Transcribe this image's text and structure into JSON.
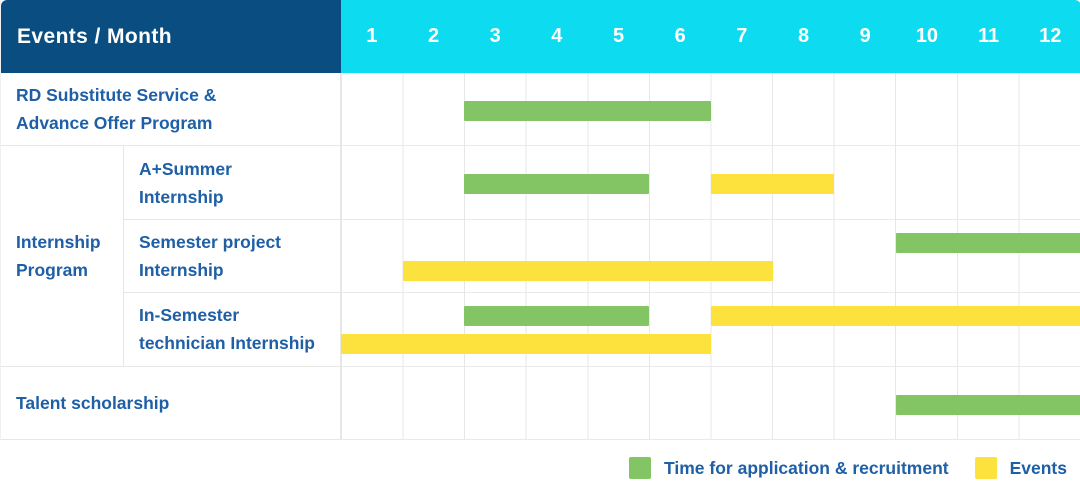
{
  "header": {
    "title": "Events / Month",
    "months": [
      "1",
      "2",
      "3",
      "4",
      "5",
      "6",
      "7",
      "8",
      "9",
      "10",
      "11",
      "12"
    ]
  },
  "group_label": {
    "lines": [
      "Internship",
      "Program"
    ]
  },
  "rows": [
    {
      "lines": [
        "RD Substitute Service &",
        "Advance Offer Program"
      ],
      "bars": [
        {
          "type": "recruitment",
          "from": 3,
          "to": 6,
          "line": "single"
        }
      ]
    },
    {
      "lines": [
        "A+Summer",
        "Internship"
      ],
      "bars": [
        {
          "type": "recruitment",
          "from": 3,
          "to": 5,
          "line": "single"
        },
        {
          "type": "event",
          "from": 7,
          "to": 8,
          "line": "single"
        }
      ]
    },
    {
      "lines": [
        "Semester project",
        "Internship"
      ],
      "bars": [
        {
          "type": "recruitment",
          "from": 10,
          "to": 12,
          "line": "top"
        },
        {
          "type": "event",
          "from": 2,
          "to": 7,
          "line": "bottom"
        }
      ]
    },
    {
      "lines": [
        "In-Semester",
        "technician Internship"
      ],
      "bars": [
        {
          "type": "recruitment",
          "from": 3,
          "to": 5,
          "line": "top"
        },
        {
          "type": "event",
          "from": 7,
          "to": 12,
          "line": "top"
        },
        {
          "type": "event",
          "from": 1,
          "to": 6,
          "line": "bottom"
        }
      ]
    },
    {
      "lines": [
        "Talent scholarship"
      ],
      "bars": [
        {
          "type": "recruitment",
          "from": 10,
          "to": 12,
          "line": "single"
        }
      ]
    }
  ],
  "legend": [
    {
      "type": "recruitment",
      "label": "Time for application & recruitment"
    },
    {
      "type": "event",
      "label": "Events"
    }
  ],
  "colors": {
    "dark_blue_header": "#0a4d80",
    "cyan_header": "#0cdbf0",
    "green_recruitment": "#83c564",
    "yellow_event": "#fde23e",
    "label_blue": "#1e5fa6",
    "grid_line": "#e7e7e7"
  },
  "chart_data": {
    "type": "table",
    "subtype": "gantt",
    "title": "Events / Month",
    "x_axis": {
      "label": "Month",
      "ticks": [
        1,
        2,
        3,
        4,
        5,
        6,
        7,
        8,
        9,
        10,
        11,
        12
      ],
      "range": [
        1,
        12
      ]
    },
    "legend_position": "bottom-right",
    "grid": true,
    "rows": [
      {
        "event": "RD Substitute Service & Advance Offer Program",
        "group": null,
        "application_recruitment_months": [
          [
            3,
            6
          ]
        ],
        "event_months": []
      },
      {
        "event": "A+Summer Internship",
        "group": "Internship Program",
        "application_recruitment_months": [
          [
            3,
            5
          ]
        ],
        "event_months": [
          [
            7,
            8
          ]
        ]
      },
      {
        "event": "Semester project Internship",
        "group": "Internship Program",
        "application_recruitment_months": [
          [
            10,
            12
          ]
        ],
        "event_months": [
          [
            2,
            7
          ]
        ]
      },
      {
        "event": "In-Semester technician Internship",
        "group": "Internship Program",
        "application_recruitment_months": [
          [
            3,
            5
          ]
        ],
        "event_months": [
          [
            7,
            12
          ],
          [
            1,
            6
          ]
        ]
      },
      {
        "event": "Talent scholarship",
        "group": null,
        "application_recruitment_months": [
          [
            10,
            12
          ]
        ],
        "event_months": []
      }
    ],
    "series_legend": [
      {
        "name": "Time for application & recruitment",
        "color": "#83c564"
      },
      {
        "name": "Events",
        "color": "#fde23e"
      }
    ]
  }
}
